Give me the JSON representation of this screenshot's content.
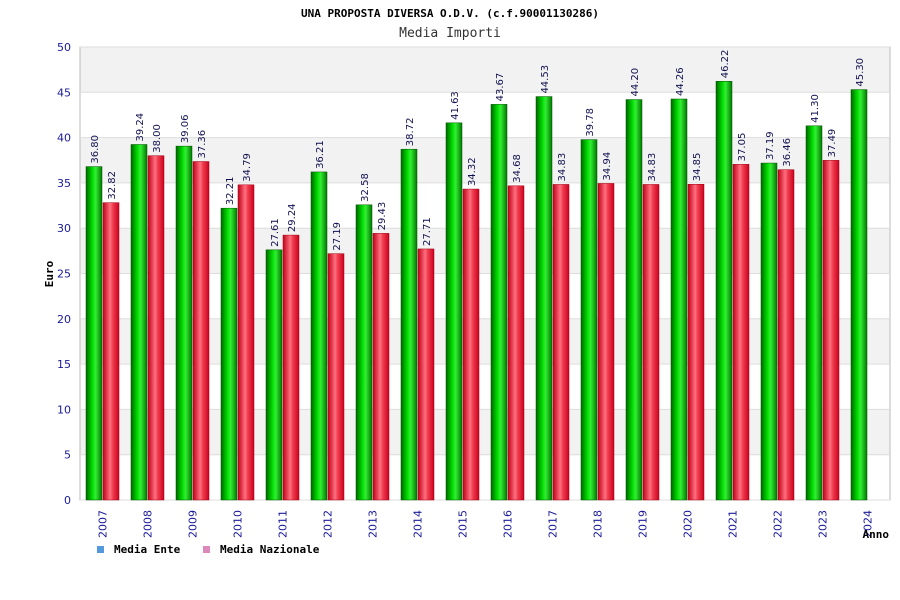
{
  "chart_data": {
    "type": "bar",
    "title": "UNA PROPOSTA DIVERSA O.D.V. (c.f.90001130286)",
    "subtitle": "Media Importi",
    "xlabel": "Anno",
    "ylabel": "Euro",
    "ylim": [
      0,
      50
    ],
    "yticks": [
      "0",
      "5",
      "10",
      "15",
      "20",
      "25",
      "30",
      "35",
      "40",
      "45",
      "50"
    ],
    "grid": true,
    "legend_position": "bottom-left",
    "categories": [
      "2007",
      "2008",
      "2009",
      "2010",
      "2011",
      "2012",
      "2013",
      "2014",
      "2015",
      "2016",
      "2017",
      "2018",
      "2019",
      "2020",
      "2021",
      "2022",
      "2023",
      "2024"
    ],
    "series": [
      {
        "name": "Media Ente",
        "legend_color": "#5599dd",
        "bar_color": "#00b000",
        "values": [
          36.8,
          39.24,
          39.06,
          32.21,
          27.61,
          36.21,
          32.58,
          38.72,
          41.63,
          43.67,
          44.53,
          39.78,
          44.2,
          44.26,
          46.22,
          37.19,
          41.3,
          45.3
        ],
        "labels": [
          "36.80",
          "39.24",
          "39.06",
          "32.21",
          "27.61",
          "36.21",
          "32.58",
          "38.72",
          "41.63",
          "43.67",
          "44.53",
          "39.78",
          "44.20",
          "44.26",
          "46.22",
          "37.19",
          "41.30",
          "45.30"
        ]
      },
      {
        "name": "Media Nazionale",
        "legend_color": "#dd88bb",
        "bar_color": "#e8283c",
        "values": [
          32.82,
          38.0,
          37.36,
          34.79,
          29.24,
          27.19,
          29.43,
          27.71,
          34.32,
          34.68,
          34.83,
          34.94,
          34.83,
          34.85,
          37.05,
          36.46,
          37.49,
          null
        ],
        "labels": [
          "32.82",
          "38.00",
          "37.36",
          "34.79",
          "29.24",
          "27.19",
          "29.43",
          "27.71",
          "34.32",
          "34.68",
          "34.83",
          "34.94",
          "34.83",
          "34.85",
          "37.05",
          "36.46",
          "37.49",
          null
        ]
      }
    ]
  }
}
